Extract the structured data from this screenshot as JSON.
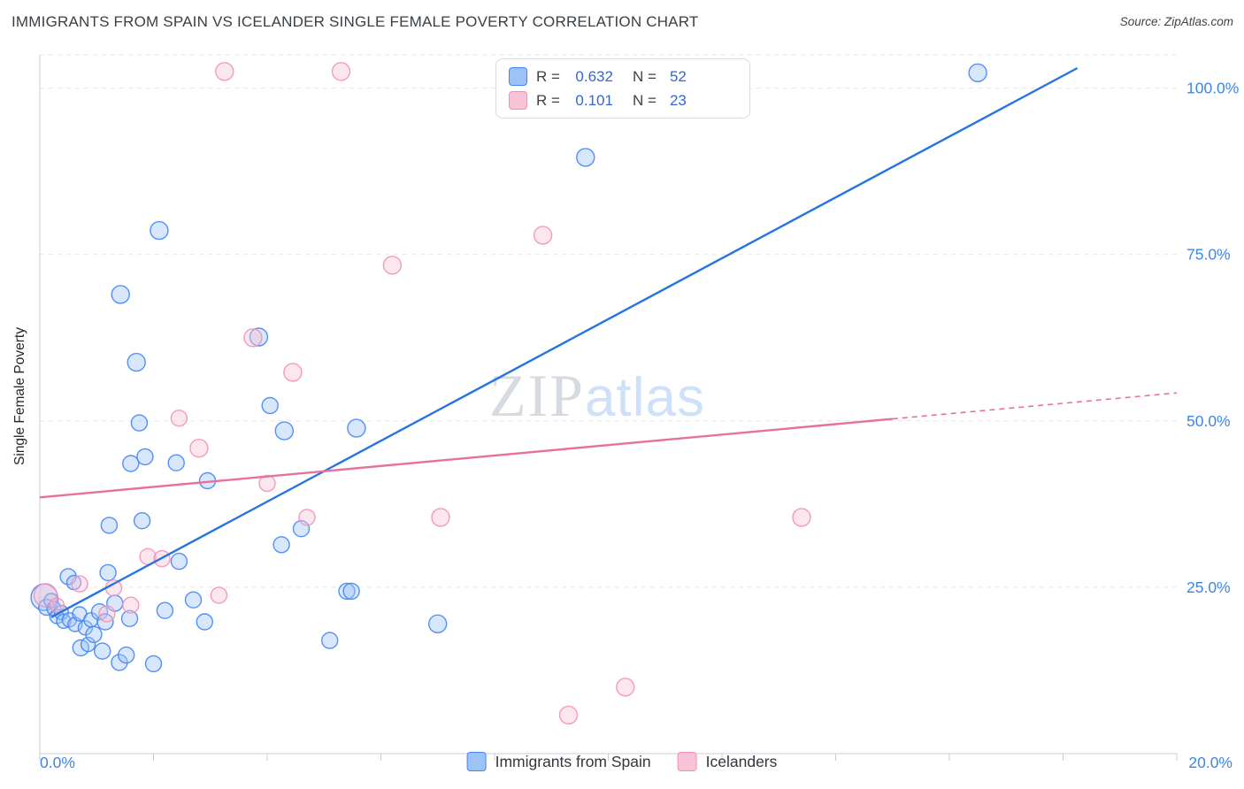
{
  "header": {
    "title": "IMMIGRANTS FROM SPAIN VS ICELANDER SINGLE FEMALE POVERTY CORRELATION CHART",
    "source": "Source: ZipAtlas.com"
  },
  "colors": {
    "accent_blue": "#4186e0",
    "legend_value_blue": "#3566d6",
    "text_dark": "#3b4045",
    "grid": "#e2e5e9",
    "axis": "#c9cdd3"
  },
  "watermark": {
    "zip": "ZIP",
    "atlas": "atlas"
  },
  "correlation_legend": {
    "rows": [
      {
        "r_label": "R =",
        "r_value": "0.632",
        "n_label": "N =",
        "n_value": "52"
      },
      {
        "r_label": "R =",
        "r_value": "0.101",
        "n_label": "N =",
        "n_value": "23"
      }
    ]
  },
  "axes": {
    "y_title": "Single Female Poverty",
    "x_left": "0.0%",
    "x_right": "20.0%"
  },
  "bottom_legend": [
    {
      "label": "Immigrants from Spain"
    },
    {
      "label": "Icelanders"
    }
  ],
  "chart_data": {
    "type": "scatter",
    "title": "Immigrants from Spain vs Icelander Single Female Poverty Correlation Chart",
    "ylabel": "Single Female Poverty",
    "x_range": [
      0,
      20
    ],
    "y_range": [
      0,
      105
    ],
    "x_tick_step": 2,
    "gridlines_y": [
      25,
      50,
      75,
      100
    ],
    "y_tick_labels": [
      {
        "label": "100.0%",
        "value": 100
      },
      {
        "label": "75.0%",
        "value": 75
      },
      {
        "label": "50.0%",
        "value": 50
      },
      {
        "label": "25.0%",
        "value": 25
      }
    ],
    "legend_position": "bottom",
    "series": [
      {
        "id": "spain",
        "name": "Immigrants from Spain",
        "r": 0.632,
        "n": 52,
        "color": "#4285f4",
        "fill": "#9ec2f5",
        "line_color": "#2674e0",
        "trend": {
          "solid": [
            0.2,
            20.5,
            18.25,
            103.0
          ]
        },
        "points": [
          [
            0.08,
            23.5,
            15
          ],
          [
            0.12,
            22.0,
            9
          ],
          [
            0.2,
            23.0,
            8
          ],
          [
            0.25,
            21.8,
            8
          ],
          [
            0.3,
            20.6,
            8
          ],
          [
            0.38,
            21.2,
            8
          ],
          [
            0.42,
            19.9,
            8
          ],
          [
            0.5,
            26.6,
            9
          ],
          [
            0.52,
            20.1,
            8
          ],
          [
            0.6,
            25.7,
            8
          ],
          [
            0.62,
            19.4,
            8
          ],
          [
            0.7,
            21.0,
            8
          ],
          [
            0.72,
            15.9,
            9
          ],
          [
            0.8,
            18.9,
            8
          ],
          [
            0.85,
            16.4,
            8
          ],
          [
            0.9,
            20.1,
            8
          ],
          [
            0.95,
            17.9,
            9
          ],
          [
            1.05,
            21.3,
            9
          ],
          [
            1.1,
            15.4,
            9
          ],
          [
            1.15,
            19.8,
            9
          ],
          [
            1.2,
            27.2,
            9
          ],
          [
            1.22,
            34.3,
            9
          ],
          [
            1.32,
            22.6,
            9
          ],
          [
            1.42,
            69.0,
            10
          ],
          [
            1.4,
            13.7,
            9
          ],
          [
            1.52,
            14.8,
            9
          ],
          [
            1.58,
            20.3,
            9
          ],
          [
            1.6,
            43.6,
            9
          ],
          [
            1.7,
            58.8,
            10
          ],
          [
            1.75,
            49.7,
            9
          ],
          [
            1.8,
            35.0,
            9
          ],
          [
            1.85,
            44.6,
            9
          ],
          [
            2.0,
            13.5,
            9
          ],
          [
            2.1,
            78.6,
            10
          ],
          [
            2.2,
            21.5,
            9
          ],
          [
            2.4,
            43.7,
            9
          ],
          [
            2.45,
            28.9,
            9
          ],
          [
            2.7,
            23.1,
            9
          ],
          [
            2.9,
            19.8,
            9
          ],
          [
            2.95,
            41.0,
            9
          ],
          [
            3.85,
            62.6,
            10
          ],
          [
            4.05,
            52.3,
            9
          ],
          [
            4.3,
            48.5,
            10
          ],
          [
            4.25,
            31.4,
            9
          ],
          [
            4.6,
            33.8,
            9
          ],
          [
            5.1,
            17.0,
            9
          ],
          [
            5.4,
            24.4,
            9
          ],
          [
            5.48,
            24.4,
            9
          ],
          [
            5.57,
            48.9,
            10
          ],
          [
            7.0,
            19.5,
            10
          ],
          [
            9.6,
            89.6,
            10
          ],
          [
            16.5,
            102.3,
            10
          ]
        ]
      },
      {
        "id": "icelanders",
        "name": "Icelanders",
        "r": 0.101,
        "n": 23,
        "color": "#f291b4",
        "fill": "#f9c2d7",
        "line_color": "#e8709f",
        "trend": {
          "solid": [
            0.0,
            38.5,
            15.0,
            50.3
          ],
          "dashed": [
            15.0,
            50.3,
            20.0,
            54.2
          ]
        },
        "points": [
          [
            0.1,
            23.8,
            13
          ],
          [
            0.3,
            22.3,
            8
          ],
          [
            0.7,
            25.5,
            9
          ],
          [
            1.18,
            21.0,
            9
          ],
          [
            1.3,
            24.9,
            9
          ],
          [
            1.6,
            22.3,
            9
          ],
          [
            1.9,
            29.6,
            9
          ],
          [
            2.15,
            29.3,
            9
          ],
          [
            2.45,
            50.4,
            9
          ],
          [
            2.8,
            45.9,
            10
          ],
          [
            3.15,
            23.8,
            9
          ],
          [
            3.25,
            102.5,
            10
          ],
          [
            3.75,
            62.5,
            10
          ],
          [
            4.0,
            40.6,
            9
          ],
          [
            4.45,
            57.3,
            10
          ],
          [
            4.7,
            35.5,
            9
          ],
          [
            5.3,
            102.5,
            10
          ],
          [
            6.2,
            73.4,
            10
          ],
          [
            7.05,
            35.5,
            10
          ],
          [
            8.85,
            77.9,
            10
          ],
          [
            9.3,
            5.8,
            10
          ],
          [
            10.3,
            10.0,
            10
          ],
          [
            13.4,
            35.5,
            10
          ]
        ]
      }
    ]
  }
}
